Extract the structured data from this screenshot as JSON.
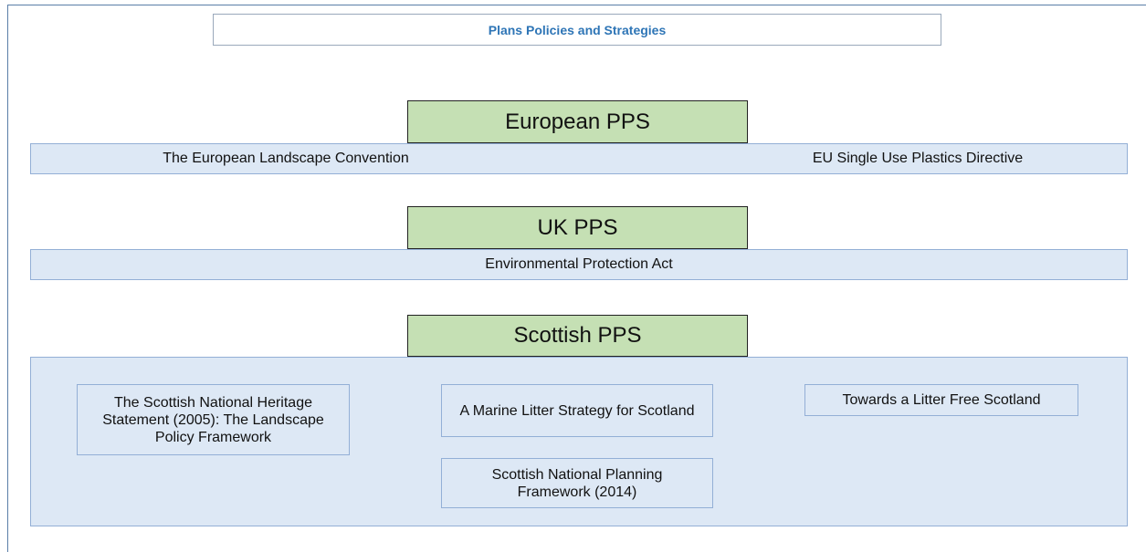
{
  "title": "Plans Policies and Strategies",
  "levels": [
    {
      "heading": "European PPS",
      "items": [
        "The European Landscape Convention",
        "EU Single Use Plastics Directive"
      ]
    },
    {
      "heading": "UK PPS",
      "items": [
        "Environmental Protection Act"
      ]
    },
    {
      "heading": "Scottish PPS",
      "items": [
        "The Scottish National Heritage Statement (2005): The Landscape Policy Framework",
        "A Marine Litter Strategy for Scotland",
        "Towards a Litter Free Scotland",
        "Scottish National Planning Framework (2014)"
      ]
    }
  ]
}
